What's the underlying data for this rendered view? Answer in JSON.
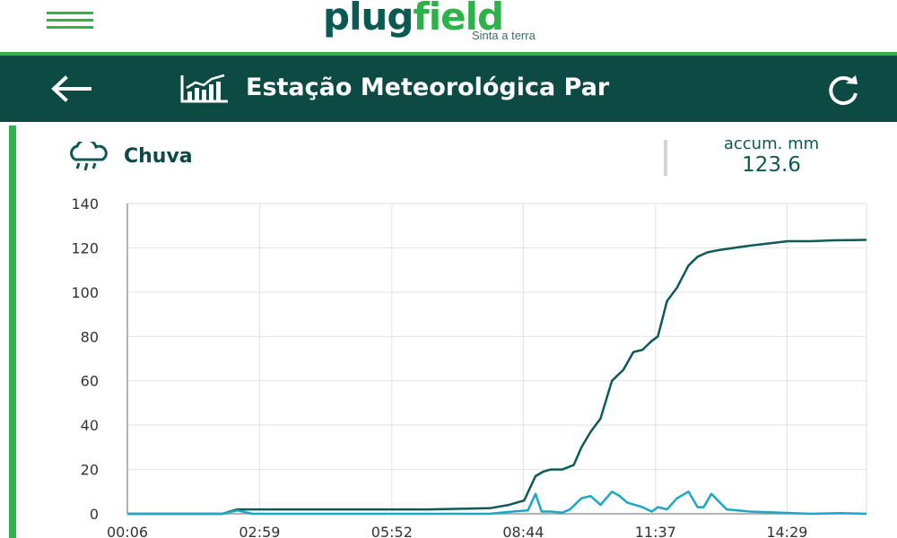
{
  "brand": {
    "name_part1": "plug",
    "name_part2": "field",
    "tagline": "Sinta a terra"
  },
  "header": {
    "title": "Estação Meteorológica Par"
  },
  "card": {
    "sensor_label": "Chuva",
    "accum_label": "accum. mm",
    "accum_value": "123.6"
  },
  "colors": {
    "brand_green": "#2db34a",
    "header_bg": "#0e4a44",
    "accum_line": "#0d5a56",
    "rain_line": "#1aa8c4"
  },
  "icons": {
    "menu": "hamburger-icon",
    "back": "arrow-left-icon",
    "title": "line-chart-icon",
    "refresh": "refresh-icon",
    "sensor": "rain-cloud-icon"
  },
  "chart_data": {
    "type": "line",
    "title": "",
    "xlabel": "",
    "ylabel": "",
    "ylim": [
      0,
      140
    ],
    "yticks": [
      0,
      20,
      40,
      60,
      80,
      100,
      120,
      140
    ],
    "xticks": [
      "00:06",
      "02:59",
      "05:52",
      "08:44",
      "11:37",
      "14:29"
    ],
    "xtick_minutes": [
      6,
      179,
      352,
      524,
      697,
      869
    ],
    "xlim_minutes": [
      6,
      973
    ],
    "grid": true,
    "series": [
      {
        "role": "accumulated",
        "x_minutes": [
          6,
          130,
          150,
          200,
          300,
          400,
          480,
          505,
          525,
          540,
          550,
          560,
          575,
          590,
          600,
          612,
          625,
          640,
          655,
          668,
          680,
          692,
          700,
          712,
          725,
          740,
          752,
          765,
          780,
          800,
          820,
          845,
          870,
          900,
          930,
          955,
          973
        ],
        "values": [
          0,
          0,
          2,
          2,
          2,
          2,
          2.5,
          4,
          6,
          17,
          19,
          20,
          20,
          22,
          30,
          37,
          43,
          60,
          65,
          73,
          74,
          78,
          80,
          96,
          102,
          112,
          116,
          118,
          119,
          120,
          121,
          122,
          123,
          123,
          123.4,
          123.5,
          123.6
        ]
      },
      {
        "role": "rain",
        "x_minutes": [
          6,
          130,
          150,
          170,
          200,
          480,
          510,
          530,
          540,
          548,
          560,
          575,
          585,
          600,
          612,
          625,
          640,
          650,
          660,
          670,
          680,
          692,
          700,
          712,
          725,
          740,
          752,
          760,
          770,
          790,
          820,
          860,
          900,
          940,
          973
        ],
        "values": [
          0,
          0,
          1.5,
          0,
          0,
          0,
          1,
          1.5,
          9,
          1,
          1,
          0.5,
          2,
          7,
          8,
          4,
          10,
          8,
          5,
          4,
          3,
          1,
          3,
          2,
          7,
          10,
          3,
          3,
          9,
          2,
          1,
          0.5,
          0,
          0.3,
          0
        ]
      }
    ]
  }
}
